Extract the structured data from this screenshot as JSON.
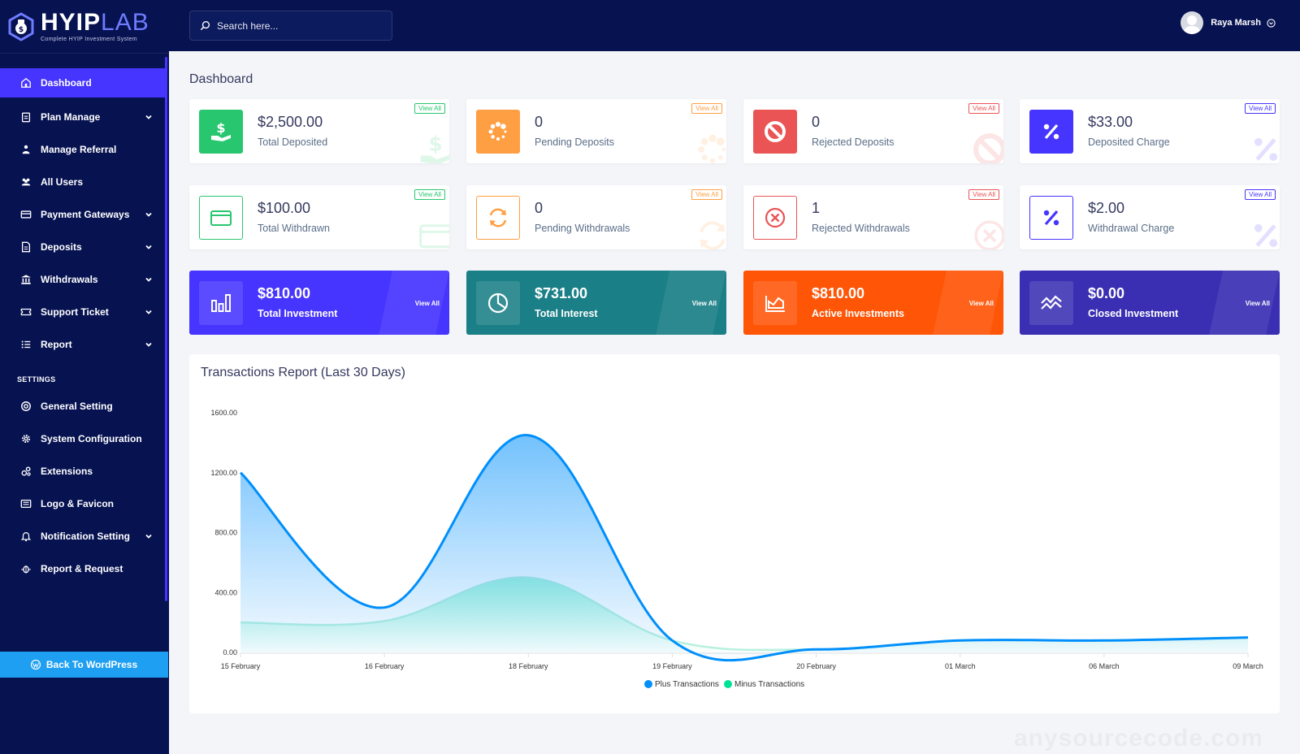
{
  "brand": {
    "name_main": "HYIP",
    "name_accent": "LAB",
    "tagline": "Complete HYIP Investment System"
  },
  "search": {
    "placeholder": "Search here..."
  },
  "user": {
    "name": "Raya Marsh"
  },
  "sidebar": {
    "items": [
      {
        "label": "Dashboard",
        "icon": "home-icon",
        "active": true,
        "has_submenu": false
      },
      {
        "label": "Plan Manage",
        "icon": "clipboard-icon",
        "has_submenu": true
      },
      {
        "label": "Manage Referral",
        "icon": "referral-icon",
        "has_submenu": false
      },
      {
        "label": "All Users",
        "icon": "users-icon",
        "has_submenu": false
      },
      {
        "label": "Payment Gateways",
        "icon": "card-icon",
        "has_submenu": true
      },
      {
        "label": "Deposits",
        "icon": "file-icon",
        "has_submenu": true
      },
      {
        "label": "Withdrawals",
        "icon": "bank-icon",
        "has_submenu": true
      },
      {
        "label": "Support Ticket",
        "icon": "ticket-icon",
        "has_submenu": true
      },
      {
        "label": "Report",
        "icon": "list-icon",
        "has_submenu": true
      }
    ],
    "settings_caption": "SETTINGS",
    "settings_items": [
      {
        "label": "General Setting",
        "icon": "life-ring-icon",
        "has_submenu": false
      },
      {
        "label": "System Configuration",
        "icon": "cog-icon",
        "has_submenu": false
      },
      {
        "label": "Extensions",
        "icon": "cogs-icon",
        "has_submenu": false
      },
      {
        "label": "Logo & Favicon",
        "icon": "image-icon",
        "has_submenu": false
      },
      {
        "label": "Notification Setting",
        "icon": "bell-icon",
        "has_submenu": true
      },
      {
        "label": "Report & Request",
        "icon": "bug-icon",
        "has_submenu": false
      }
    ],
    "back_label": "Back To WordPress"
  },
  "page": {
    "title": "Dashboard"
  },
  "stat_cards": [
    {
      "amount": "$2,500.00",
      "label": "Total Deposited",
      "view_all": "View All",
      "color": "#28c76f",
      "icon": "hand-dollar-icon",
      "filled": true
    },
    {
      "amount": "0",
      "label": "Pending Deposits",
      "view_all": "View All",
      "color": "#ff9f43",
      "icon": "spinner-icon",
      "filled": true
    },
    {
      "amount": "0",
      "label": "Rejected Deposits",
      "view_all": "View All",
      "color": "#ea5455",
      "icon": "ban-icon",
      "filled": true
    },
    {
      "amount": "$33.00",
      "label": "Deposited Charge",
      "view_all": "View All",
      "color": "#4634ff",
      "icon": "percent-icon",
      "filled": true
    },
    {
      "amount": "$100.00",
      "label": "Total Withdrawn",
      "view_all": "View All",
      "color": "#28c76f",
      "icon": "wallet-icon",
      "filled": false
    },
    {
      "amount": "0",
      "label": "Pending Withdrawals",
      "view_all": "View All",
      "color": "#ff9f43",
      "icon": "refresh-icon",
      "filled": false
    },
    {
      "amount": "1",
      "label": "Rejected Withdrawals",
      "view_all": "View All",
      "color": "#ea5455",
      "icon": "times-circle-icon",
      "filled": false
    },
    {
      "amount": "$2.00",
      "label": "Withdrawal Charge",
      "view_all": "View All",
      "color": "#4634ff",
      "icon": "percent-icon",
      "filled": false
    }
  ],
  "investment_cards": [
    {
      "amount": "$810.00",
      "label": "Total Investment",
      "view_all": "View All",
      "color": "#4634ff",
      "icon": "bar-chart-icon"
    },
    {
      "amount": "$731.00",
      "label": "Total Interest",
      "view_all": "View All",
      "color": "#1a7f86",
      "icon": "pie-chart-icon"
    },
    {
      "amount": "$810.00",
      "label": "Active Investments",
      "view_all": "View All",
      "color": "#ff5507",
      "icon": "area-chart-icon"
    },
    {
      "amount": "$0.00",
      "label": "Closed Investment",
      "view_all": "View All",
      "color": "#3a2fb3",
      "icon": "trend-icon"
    }
  ],
  "chart_data": {
    "type": "area",
    "title": "Transactions Report (Last 30 Days)",
    "categories": [
      "15 February",
      "16 February",
      "18 February",
      "19 February",
      "20 February",
      "01 March",
      "06 March",
      "09 March"
    ],
    "series": [
      {
        "name": "Plus Transactions",
        "color": "#008ffb",
        "values": [
          1200,
          300,
          1450,
          80,
          20,
          80,
          80,
          100
        ]
      },
      {
        "name": "Minus Transactions",
        "color": "#00e396",
        "values": [
          200,
          210,
          500,
          80,
          20,
          80,
          80,
          100
        ]
      }
    ],
    "yticks": [
      "0.00",
      "400.00",
      "800.00",
      "1200.00",
      "1600.00"
    ],
    "ylim": [
      0,
      1600
    ],
    "legend": "bottom-center"
  },
  "watermark": "anysourcecode.com"
}
